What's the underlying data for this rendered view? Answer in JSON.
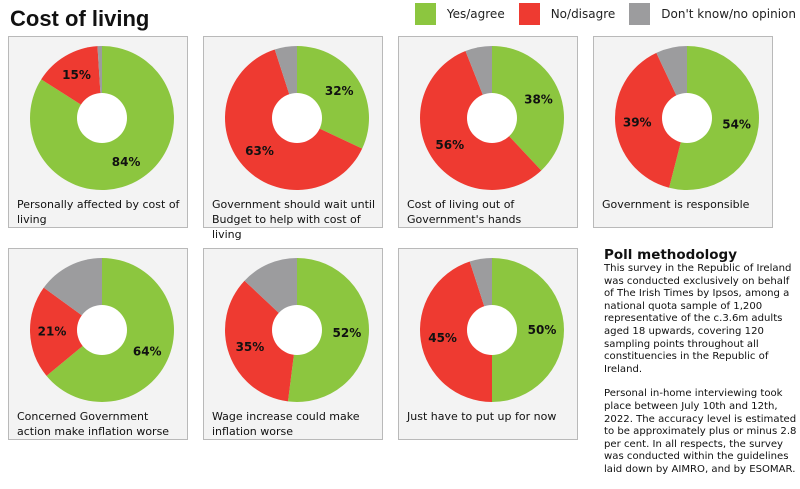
{
  "title": "Cost of living",
  "legend": [
    {
      "label": "Yes/agree",
      "color": "#8cc63f"
    },
    {
      "label": "No/disagre",
      "color": "#ee3a31"
    },
    {
      "label": "Don't know/no opinion",
      "color": "#9c9c9e"
    }
  ],
  "chart_data": [
    {
      "type": "pie",
      "title": "Personally affected by cost of living",
      "categories": [
        "Yes/agree",
        "No/disagre",
        "Don't know/no opinion"
      ],
      "values": [
        84,
        15,
        1
      ],
      "labels": [
        "84%",
        "15%",
        ""
      ]
    },
    {
      "type": "pie",
      "title": "Government should wait until Budget to help with cost of living",
      "categories": [
        "Yes/agree",
        "No/disagre",
        "Don't know/no opinion"
      ],
      "values": [
        32,
        63,
        5
      ],
      "labels": [
        "32%",
        "63%",
        ""
      ]
    },
    {
      "type": "pie",
      "title": "Cost of living out of Government's hands",
      "categories": [
        "Yes/agree",
        "No/disagre",
        "Don't know/no opinion"
      ],
      "values": [
        38,
        56,
        6
      ],
      "labels": [
        "38%",
        "56%",
        ""
      ]
    },
    {
      "type": "pie",
      "title": "Government is responsible",
      "categories": [
        "Yes/agree",
        "No/disagre",
        "Don't know/no opinion"
      ],
      "values": [
        54,
        39,
        7
      ],
      "labels": [
        "54%",
        "39%",
        ""
      ]
    },
    {
      "type": "pie",
      "title": "Concerned Government action make inflation worse",
      "categories": [
        "Yes/agree",
        "No/disagre",
        "Don't know/no opinion"
      ],
      "values": [
        64,
        21,
        15
      ],
      "labels": [
        "64%",
        "21%",
        ""
      ]
    },
    {
      "type": "pie",
      "title": "Wage increase could make inflation worse",
      "categories": [
        "Yes/agree",
        "No/disagre",
        "Don't know/no opinion"
      ],
      "values": [
        52,
        35,
        13
      ],
      "labels": [
        "52%",
        "35%",
        ""
      ]
    },
    {
      "type": "pie",
      "title": "Just have to put up for now",
      "categories": [
        "Yes/agree",
        "No/disagre",
        "Don't know/no opinion"
      ],
      "values": [
        50,
        45,
        5
      ],
      "labels": [
        "50%",
        "45%",
        ""
      ]
    }
  ],
  "methodology": {
    "heading": "Poll methodology",
    "paragraphs": [
      "This survey in the Republic of Ireland was conducted exclusively on behalf of The Irish Times by Ipsos, among a national quota sample of 1,200 representative of the c.3.6m adults aged 18 upwards, covering 120 sampling points throughout all constituencies in the Republic of Ireland.",
      "Personal in-home interviewing took place between July 10th and 12th, 2022. The accuracy level is estimated to be approximately plus or minus 2.8 per cent. In all respects, the survey was conducted within the guidelines laid down by AIMRO, and by ESOMAR."
    ]
  }
}
